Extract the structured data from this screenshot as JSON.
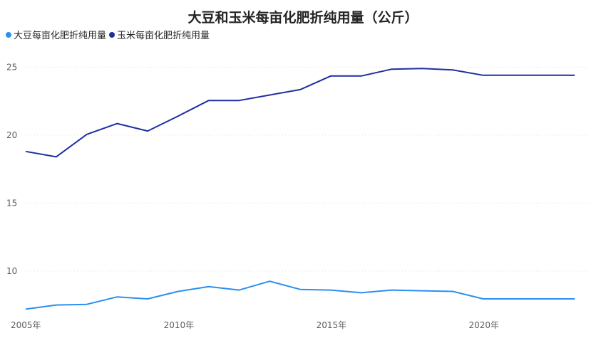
{
  "chart_data": {
    "type": "line",
    "title": "大豆和玉米每亩化肥折纯用量（公斤）",
    "xlabel": "",
    "ylabel": "",
    "x": [
      2005,
      2006,
      2007,
      2008,
      2009,
      2010,
      2011,
      2012,
      2013,
      2014,
      2015,
      2016,
      2017,
      2018,
      2019,
      2020,
      2021,
      2022,
      2023
    ],
    "x_tick_labels": [
      "2005年",
      "2010年",
      "2015年",
      "2020年"
    ],
    "x_ticks": [
      2005,
      2010,
      2015,
      2020
    ],
    "y_ticks": [
      10,
      15,
      20,
      25
    ],
    "ylim": [
      6.8,
      26.8
    ],
    "xlim": [
      2005,
      2023.3
    ],
    "grid": true,
    "legend_position": "top-left",
    "series": [
      {
        "name": "大豆每亩化肥折纯用量",
        "color": "#2b8ff0",
        "values": [
          7.2,
          7.5,
          7.55,
          8.1,
          7.95,
          8.5,
          8.85,
          8.6,
          9.25,
          8.65,
          8.6,
          8.4,
          8.6,
          8.55,
          8.5,
          7.95,
          7.95,
          7.95,
          7.95
        ]
      },
      {
        "name": "玉米每亩化肥折纯用量",
        "color": "#1f2ea0",
        "values": [
          18.8,
          18.4,
          20.05,
          20.85,
          20.3,
          21.4,
          22.55,
          22.55,
          22.95,
          23.35,
          24.35,
          24.35,
          24.85,
          24.9,
          24.8,
          24.4,
          24.4,
          24.4,
          24.4
        ]
      }
    ]
  }
}
